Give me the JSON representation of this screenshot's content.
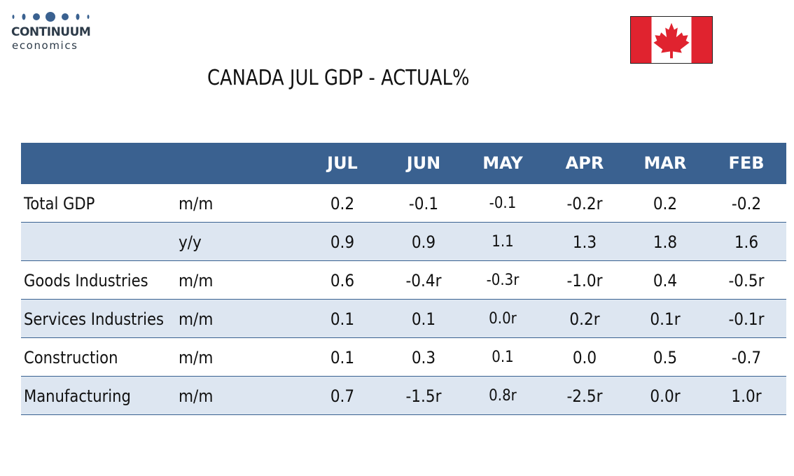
{
  "logo": {
    "word1": "CONTINUUM",
    "word2": "economics"
  },
  "flag": {
    "icon": "canada-flag-icon",
    "colors": {
      "red": "#e0232f",
      "white": "#ffffff"
    }
  },
  "title": "CANADA JUL GDP - ACTUAL%",
  "table": {
    "header": {
      "label": "",
      "measure": "",
      "months": [
        "JUL",
        "JUN",
        "MAY",
        "APR",
        "MAR",
        "FEB"
      ]
    },
    "rows": [
      {
        "label": "Total GDP",
        "measure": "m/m",
        "values": [
          "0.2",
          "-0.1",
          "-0.1",
          "-0.2r",
          "0.2",
          "-0.2"
        ]
      },
      {
        "label": "",
        "measure": "y/y",
        "values": [
          "0.9",
          "0.9",
          "1.1",
          "1.3",
          "1.8",
          "1.6"
        ]
      },
      {
        "label": "Goods Industries",
        "measure": "m/m",
        "values": [
          "0.6",
          "-0.4r",
          "-0.3r",
          "-1.0r",
          "0.4",
          "-0.5r"
        ]
      },
      {
        "label": "Services Industries",
        "measure": "m/m",
        "values": [
          "0.1",
          "0.1",
          "0.0r",
          "0.2r",
          "0.1r",
          "-0.1r"
        ]
      },
      {
        "label": "Construction",
        "measure": "m/m",
        "values": [
          "0.1",
          "0.3",
          "0.1",
          "0.0",
          "0.5",
          "-0.7"
        ]
      },
      {
        "label": "Manufacturing",
        "measure": "m/m",
        "values": [
          "0.7",
          "-1.5r",
          "0.8r",
          "-2.5r",
          "0.0r",
          "1.0r"
        ]
      }
    ],
    "colors": {
      "header_bg": "#3a6190",
      "header_text": "#ffffff",
      "alt_row_bg": "#dde6f1",
      "rule": "#3a6190"
    }
  }
}
